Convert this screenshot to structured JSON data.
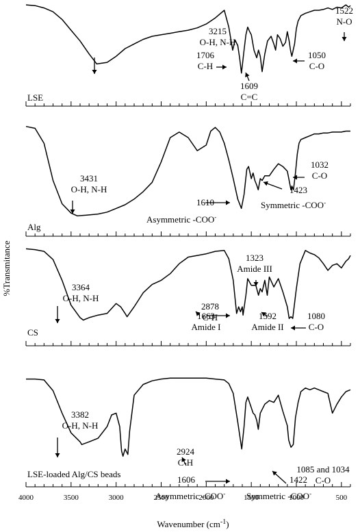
{
  "chart_data": {
    "type": "line",
    "x_axis": {
      "label": "Wavenumber (cm",
      "label_sup": "-1",
      "label_end": ")",
      "range": [
        4000,
        400
      ],
      "reversed": true,
      "major_ticks": [
        4000,
        3500,
        3000,
        2500,
        2000,
        1500,
        1000,
        500
      ],
      "minor_step": 100
    },
    "y_axis": {
      "label": "%Transmitance"
    },
    "panels": [
      {
        "name": "LSE",
        "x": [
          4000,
          3900,
          3800,
          3700,
          3600,
          3500,
          3400,
          3300,
          3215,
          3100,
          3000,
          2900,
          2800,
          2700,
          2600,
          2500,
          2400,
          2300,
          2200,
          2100,
          2000,
          1900,
          1800,
          1750,
          1706,
          1680,
          1650,
          1630,
          1609,
          1580,
          1560,
          1540,
          1522,
          1500,
          1470,
          1440,
          1420,
          1400,
          1380,
          1350,
          1320,
          1280,
          1250,
          1230,
          1210,
          1180,
          1150,
          1120,
          1100,
          1080,
          1065,
          1050,
          1020,
          1000,
          980,
          950,
          900,
          850,
          800,
          750,
          700,
          650,
          600,
          550,
          500,
          450,
          420,
          400
        ],
        "y": [
          0.99,
          0.98,
          0.95,
          0.9,
          0.8,
          0.66,
          0.52,
          0.35,
          0.22,
          0.24,
          0.32,
          0.42,
          0.48,
          0.54,
          0.58,
          0.6,
          0.62,
          0.64,
          0.66,
          0.69,
          0.74,
          0.82,
          0.92,
          0.7,
          0.4,
          0.53,
          0.46,
          0.3,
          0.1,
          0.4,
          0.6,
          0.7,
          0.65,
          0.6,
          0.4,
          0.3,
          0.4,
          0.32,
          0.12,
          0.35,
          0.52,
          0.58,
          0.48,
          0.4,
          0.6,
          0.55,
          0.45,
          0.5,
          0.64,
          0.52,
          0.4,
          0.32,
          0.48,
          0.68,
          0.78,
          0.85,
          0.88,
          0.9,
          0.92,
          0.92,
          0.93,
          0.95,
          0.93,
          0.96,
          0.95,
          0.99,
          0.96,
          0.98
        ]
      },
      {
        "name": "Alg",
        "x": [
          4000,
          3900,
          3800,
          3700,
          3600,
          3500,
          3431,
          3300,
          3200,
          3100,
          3000,
          2900,
          2800,
          2700,
          2600,
          2500,
          2400,
          2300,
          2200,
          2100,
          2000,
          1950,
          1900,
          1850,
          1800,
          1750,
          1700,
          1650,
          1610,
          1580,
          1550,
          1530,
          1500,
          1480,
          1460,
          1440,
          1423,
          1400,
          1380,
          1350,
          1300,
          1250,
          1200,
          1150,
          1100,
          1080,
          1060,
          1050,
          1032,
          1010,
          990,
          970,
          950,
          900,
          850,
          800,
          750,
          700,
          650,
          600,
          550,
          500,
          450,
          400
        ],
        "y": [
          0.98,
          0.96,
          0.8,
          0.4,
          0.15,
          0.05,
          0.02,
          0.03,
          0.04,
          0.06,
          0.1,
          0.14,
          0.2,
          0.28,
          0.38,
          0.6,
          0.86,
          0.92,
          0.86,
          0.72,
          0.78,
          0.93,
          0.97,
          0.92,
          0.8,
          0.62,
          0.42,
          0.2,
          0.1,
          0.25,
          0.52,
          0.55,
          0.42,
          0.48,
          0.4,
          0.35,
          0.3,
          0.42,
          0.4,
          0.45,
          0.45,
          0.52,
          0.58,
          0.55,
          0.5,
          0.4,
          0.3,
          0.34,
          0.3,
          0.48,
          0.68,
          0.8,
          0.84,
          0.86,
          0.88,
          0.9,
          0.9,
          0.91,
          0.91,
          0.92,
          0.92,
          0.92,
          0.93,
          0.93
        ]
      },
      {
        "name": "CS",
        "x": [
          4000,
          3900,
          3800,
          3700,
          3600,
          3500,
          3400,
          3364,
          3300,
          3200,
          3100,
          3000,
          2950,
          2900,
          2878,
          2800,
          2700,
          2600,
          2500,
          2400,
          2300,
          2200,
          2100,
          2000,
          1900,
          1800,
          1750,
          1700,
          1663,
          1640,
          1620,
          1600,
          1592,
          1560,
          1540,
          1500,
          1450,
          1420,
          1400,
          1380,
          1350,
          1323,
          1300,
          1250,
          1200,
          1150,
          1100,
          1080,
          1060,
          1040,
          1000,
          960,
          900,
          850,
          800,
          750,
          700,
          650,
          600,
          550,
          500,
          450,
          420,
          400
        ],
        "y": [
          0.98,
          0.97,
          0.95,
          0.85,
          0.6,
          0.3,
          0.15,
          0.12,
          0.15,
          0.18,
          0.2,
          0.32,
          0.28,
          0.2,
          0.16,
          0.28,
          0.45,
          0.55,
          0.6,
          0.68,
          0.8,
          0.88,
          0.9,
          0.92,
          0.95,
          0.96,
          0.86,
          0.6,
          0.2,
          0.28,
          0.22,
          0.28,
          0.18,
          0.42,
          0.62,
          0.54,
          0.54,
          0.42,
          0.5,
          0.46,
          0.6,
          0.42,
          0.64,
          0.52,
          0.62,
          0.46,
          0.28,
          0.14,
          0.16,
          0.14,
          0.5,
          0.8,
          0.96,
          0.93,
          0.91,
          0.87,
          0.8,
          0.72,
          0.78,
          0.8,
          0.75,
          0.83,
          0.86,
          0.9
        ]
      },
      {
        "name": "LSE-loaded Alg/CS beads",
        "x": [
          4000,
          3900,
          3800,
          3700,
          3600,
          3500,
          3400,
          3382,
          3300,
          3200,
          3100,
          3050,
          3000,
          2960,
          2940,
          2924,
          2900,
          2870,
          2850,
          2800,
          2700,
          2600,
          2500,
          2400,
          2300,
          2200,
          2100,
          2000,
          1900,
          1800,
          1750,
          1700,
          1650,
          1606,
          1580,
          1560,
          1540,
          1500,
          1480,
          1460,
          1440,
          1422,
          1400,
          1350,
          1300,
          1250,
          1200,
          1150,
          1100,
          1085,
          1060,
          1034,
          1010,
          980,
          950,
          900,
          850,
          800,
          750,
          700,
          650,
          600,
          550,
          500,
          450,
          400
        ],
        "y": [
          0.98,
          0.98,
          0.97,
          0.85,
          0.6,
          0.38,
          0.28,
          0.25,
          0.28,
          0.32,
          0.45,
          0.58,
          0.6,
          0.45,
          0.18,
          0.12,
          0.2,
          0.14,
          0.4,
          0.8,
          0.92,
          0.96,
          0.98,
          0.99,
          0.99,
          0.99,
          0.99,
          0.99,
          0.98,
          0.97,
          0.93,
          0.82,
          0.5,
          0.2,
          0.45,
          0.72,
          0.78,
          0.66,
          0.6,
          0.58,
          0.52,
          0.42,
          0.6,
          0.7,
          0.74,
          0.72,
          0.8,
          0.62,
          0.46,
          0.3,
          0.22,
          0.25,
          0.55,
          0.72,
          0.84,
          0.88,
          0.86,
          0.88,
          0.86,
          0.84,
          0.82,
          0.6,
          0.7,
          0.78,
          0.84,
          0.86
        ]
      }
    ],
    "annotations": [
      {
        "panel": 0,
        "lines": [
          "3215",
          "O-H, N-H"
        ]
      },
      {
        "panel": 0,
        "lines": [
          "1522",
          "N-O"
        ]
      },
      {
        "panel": 0,
        "lines": [
          "1706",
          "C-H"
        ]
      },
      {
        "panel": 0,
        "lines": [
          "1609",
          "C=C"
        ]
      },
      {
        "panel": 0,
        "lines": [
          "1050",
          "C-O"
        ]
      },
      {
        "panel": 1,
        "lines": [
          "3431",
          "O-H, N-H"
        ]
      },
      {
        "panel": 1,
        "lines": [
          "1610"
        ]
      },
      {
        "panel": 1,
        "lines": [
          "Asymmetric -COO",
          "-"
        ]
      },
      {
        "panel": 1,
        "lines": [
          "1032",
          "C-O"
        ]
      },
      {
        "panel": 1,
        "lines": [
          "1423"
        ]
      },
      {
        "panel": 1,
        "lines": [
          "Symmetric -COO",
          "-"
        ]
      },
      {
        "panel": 2,
        "lines": [
          "3364",
          "O-H, N-H"
        ]
      },
      {
        "panel": 2,
        "lines": [
          "2878",
          "C-H"
        ]
      },
      {
        "panel": 2,
        "lines": [
          "1323",
          "Amide III"
        ]
      },
      {
        "panel": 2,
        "lines": [
          "1663",
          "Amide I"
        ]
      },
      {
        "panel": 2,
        "lines": [
          "1592",
          "Amide II"
        ]
      },
      {
        "panel": 2,
        "lines": [
          "1080",
          "C-O"
        ]
      },
      {
        "panel": 3,
        "lines": [
          "3382",
          "O-H, N-H"
        ]
      },
      {
        "panel": 3,
        "lines": [
          "2924",
          "C-H"
        ]
      },
      {
        "panel": 3,
        "lines": [
          "1606"
        ]
      },
      {
        "panel": 3,
        "lines": [
          "Asymmetric -COO",
          "-"
        ]
      },
      {
        "panel": 3,
        "lines": [
          "1422"
        ]
      },
      {
        "panel": 3,
        "lines": [
          "Symmetric -COO",
          "-"
        ]
      },
      {
        "panel": 3,
        "lines": [
          "1085 and 1034",
          "C-O"
        ]
      }
    ]
  }
}
